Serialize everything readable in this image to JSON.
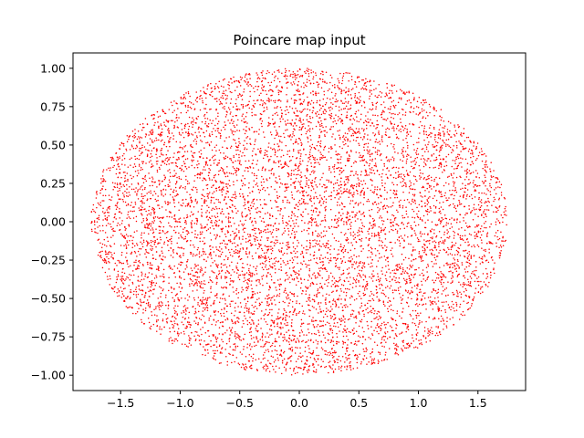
{
  "chart_data": {
    "type": "scatter",
    "title": "Poincare map input",
    "xlabel": "",
    "ylabel": "",
    "xlim": [
      -1.9,
      1.9
    ],
    "ylim": [
      -1.1,
      1.1
    ],
    "x_ticks": [
      -1.5,
      -1.0,
      -0.5,
      0.0,
      0.5,
      1.0,
      1.5
    ],
    "x_tick_labels": [
      "−1.5",
      "−1.0",
      "−0.5",
      "0.0",
      "0.5",
      "1.0",
      "1.5"
    ],
    "y_ticks": [
      1.0,
      0.75,
      0.5,
      0.25,
      0.0,
      -0.25,
      -0.5,
      -0.75,
      -1.0
    ],
    "y_tick_labels": [
      "1.00",
      "0.75",
      "0.50",
      "0.25",
      "0.00",
      "−0.25",
      "−0.50",
      "−0.75",
      "−1.00"
    ],
    "grid": false,
    "legend": "none",
    "series": [
      {
        "color": "#ff0000",
        "marker": "point",
        "distribution": "uniform within ellipse",
        "center": [
          0,
          0
        ],
        "semi_axis_x": 1.75,
        "semi_axis_y": 1.0,
        "point_count": 8000
      }
    ]
  }
}
